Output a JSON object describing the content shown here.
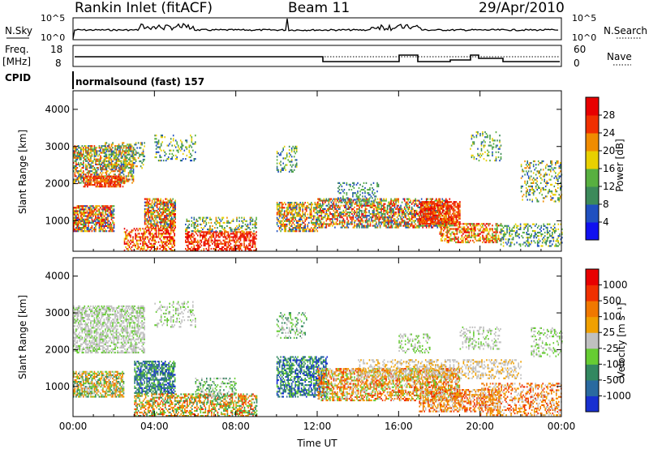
{
  "header": {
    "title": "Rankin Inlet (fitACF)",
    "beam": "Beam 11",
    "date": "29/Apr/2010"
  },
  "left_labels": {
    "nsky": "N.Sky",
    "freq": "Freq.",
    "freq_unit": "[MHz]",
    "cpid": "CPID"
  },
  "right_labels": {
    "nsearch": "N.Search",
    "nave": "Nave"
  },
  "noise_panel": {
    "tick_hi": "10^5",
    "tick_lo": "10^0",
    "right_tick_hi": "10^5",
    "right_tick_lo": "10^0"
  },
  "freq_panel": {
    "left_ticks": [
      "18",
      "8"
    ],
    "right_ticks": [
      "60",
      "0"
    ]
  },
  "cpid_text": "normalsound (fast) 157",
  "chart_data": [
    {
      "type": "heatmap",
      "name": "power",
      "ylabel": "Slant Range [km]",
      "xlabel": "",
      "xlim_hours": [
        0,
        24
      ],
      "ylim": [
        180,
        4500
      ],
      "yticks": [
        "1000",
        "2000",
        "3000",
        "4000"
      ],
      "colorbar": {
        "label": "Power [dB]",
        "ticks": [
          "4",
          "8",
          "12",
          "16",
          "20",
          "24",
          "28"
        ],
        "colors": [
          "#1010f0",
          "#2050c0",
          "#3c8a5a",
          "#58b040",
          "#e8d000",
          "#f08c00",
          "#f03000",
          "#e80000"
        ]
      }
    },
    {
      "type": "heatmap",
      "name": "velocity",
      "ylabel": "Slant Range [km]",
      "xlabel": "Time UT",
      "xlim_hours": [
        0,
        24
      ],
      "ylim": [
        180,
        4500
      ],
      "yticks": [
        "1000",
        "2000",
        "3000",
        "4000"
      ],
      "xticks": [
        "00:00",
        "04:00",
        "08:00",
        "12:00",
        "16:00",
        "20:00",
        "00:00"
      ],
      "colorbar": {
        "label": "Velocity [m s⁻¹]",
        "ticks": [
          "1000",
          "500",
          "100",
          "25",
          "-25",
          "-100",
          "-500",
          "-1000"
        ],
        "colors": [
          "#1830d0",
          "#2a6aa0",
          "#338860",
          "#66cc33",
          "#c0c0c0",
          "#f0a000",
          "#f07800",
          "#f03000",
          "#e80000"
        ]
      }
    }
  ]
}
